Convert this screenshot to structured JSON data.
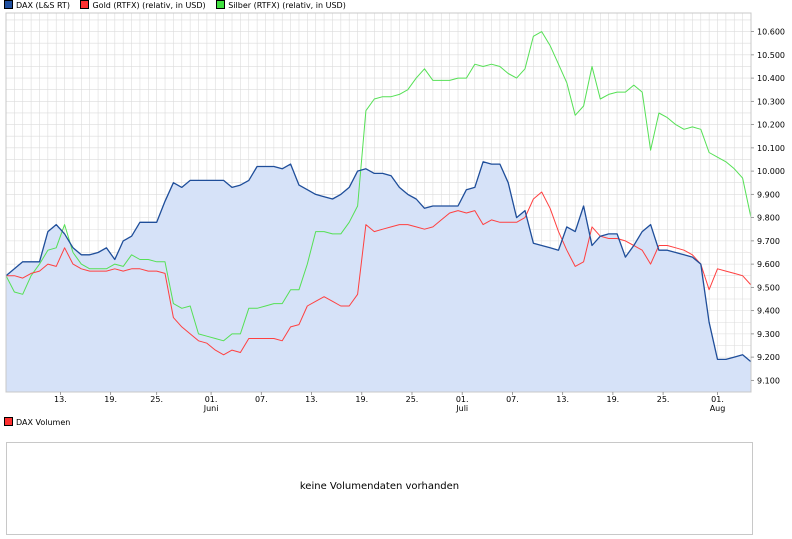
{
  "legend": [
    {
      "label": "DAX (L&S RT)",
      "color": "#2050a0"
    },
    {
      "label": "Gold (RTFX) (relativ, in USD)",
      "color": "#ff3030"
    },
    {
      "label": "Silber (RTFX) (relativ, in USD)",
      "color": "#40e040"
    }
  ],
  "volume": {
    "legend_label": "DAX Volumen",
    "legend_color": "#ff3030",
    "message": "keine Volumendaten vorhanden"
  },
  "colors": {
    "dax_line": "#1f4e9a",
    "dax_fill": "#d6e2f8",
    "gold": "#ff4040",
    "silver": "#55e055",
    "grid": "#dcdcdc",
    "frame": "#c8c8c8"
  },
  "chart_data": {
    "type": "line",
    "y_axis": {
      "position": "right",
      "ylim": [
        9050,
        10680
      ],
      "ticks": [
        9100,
        9200,
        9300,
        9400,
        9500,
        9600,
        9700,
        9800,
        9900,
        10000,
        10100,
        10200,
        10300,
        10400,
        10500,
        10600
      ],
      "tick_labels": [
        "9.100",
        "9.200",
        "9.300",
        "9.400",
        "9.500",
        "9.600",
        "9.700",
        "9.800",
        "9.900",
        "10.000",
        "10.100",
        "10.200",
        "10.300",
        "10.400",
        "10.500",
        "10.600"
      ]
    },
    "x_axis": {
      "xlim": [
        0,
        89
      ],
      "ticks": [
        {
          "x": 6.5,
          "label": "13."
        },
        {
          "x": 12.5,
          "label": "19."
        },
        {
          "x": 18,
          "label": "25."
        },
        {
          "x": 24.5,
          "label": "01.",
          "sub": "Juni"
        },
        {
          "x": 30.5,
          "label": "07."
        },
        {
          "x": 36.5,
          "label": "13."
        },
        {
          "x": 42.5,
          "label": "19."
        },
        {
          "x": 48.5,
          "label": "25."
        },
        {
          "x": 54.5,
          "label": "01.",
          "sub": "Juli"
        },
        {
          "x": 60.5,
          "label": "07."
        },
        {
          "x": 66.5,
          "label": "13."
        },
        {
          "x": 72.5,
          "label": "19."
        },
        {
          "x": 78.5,
          "label": "25."
        },
        {
          "x": 85,
          "label": "01.",
          "sub": "Aug"
        }
      ]
    },
    "grid": true,
    "legend_position": "top-left",
    "series": [
      {
        "name": "DAX (L&S RT)",
        "style": "area",
        "points": [
          [
            0,
            9550
          ],
          [
            1,
            9580
          ],
          [
            2,
            9610
          ],
          [
            3,
            9610
          ],
          [
            4,
            9610
          ],
          [
            5,
            9740
          ],
          [
            6,
            9770
          ],
          [
            7,
            9730
          ],
          [
            8,
            9670
          ],
          [
            9,
            9640
          ],
          [
            10,
            9640
          ],
          [
            11,
            9650
          ],
          [
            12,
            9670
          ],
          [
            13,
            9620
          ],
          [
            14,
            9700
          ],
          [
            15,
            9720
          ],
          [
            16,
            9780
          ],
          [
            17,
            9780
          ],
          [
            18,
            9780
          ],
          [
            19,
            9870
          ],
          [
            20,
            9950
          ],
          [
            21,
            9930
          ],
          [
            22,
            9960
          ],
          [
            23,
            9960
          ],
          [
            24,
            9960
          ],
          [
            25,
            9960
          ],
          [
            26,
            9960
          ],
          [
            27,
            9930
          ],
          [
            28,
            9940
          ],
          [
            29,
            9960
          ],
          [
            30,
            10020
          ],
          [
            31,
            10020
          ],
          [
            32,
            10020
          ],
          [
            33,
            10010
          ],
          [
            34,
            10030
          ],
          [
            35,
            9940
          ],
          [
            36,
            9920
          ],
          [
            37,
            9900
          ],
          [
            38,
            9890
          ],
          [
            39,
            9880
          ],
          [
            40,
            9900
          ],
          [
            41,
            9930
          ],
          [
            42,
            10000
          ],
          [
            43,
            10010
          ],
          [
            44,
            9990
          ],
          [
            45,
            9990
          ],
          [
            46,
            9980
          ],
          [
            47,
            9930
          ],
          [
            48,
            9900
          ],
          [
            49,
            9880
          ],
          [
            50,
            9840
          ],
          [
            51,
            9850
          ],
          [
            52,
            9850
          ],
          [
            53,
            9850
          ],
          [
            54,
            9850
          ],
          [
            55,
            9920
          ],
          [
            56,
            9930
          ],
          [
            57,
            10040
          ],
          [
            58,
            10030
          ],
          [
            59,
            10030
          ],
          [
            60,
            9950
          ],
          [
            61,
            9800
          ],
          [
            62,
            9830
          ],
          [
            63,
            9690
          ],
          [
            64,
            9680
          ],
          [
            65,
            9670
          ],
          [
            66,
            9660
          ],
          [
            67,
            9760
          ],
          [
            68,
            9740
          ],
          [
            69,
            9850
          ],
          [
            70,
            9680
          ],
          [
            71,
            9720
          ],
          [
            72,
            9730
          ],
          [
            73,
            9730
          ],
          [
            74,
            9630
          ],
          [
            75,
            9680
          ],
          [
            76,
            9740
          ],
          [
            77,
            9770
          ],
          [
            78,
            9660
          ],
          [
            79,
            9660
          ],
          [
            80,
            9650
          ],
          [
            81,
            9640
          ],
          [
            82,
            9630
          ],
          [
            83,
            9600
          ],
          [
            84,
            9350
          ],
          [
            85,
            9190
          ],
          [
            86,
            9190
          ],
          [
            87,
            9200
          ],
          [
            88,
            9210
          ],
          [
            89,
            9180
          ]
        ]
      },
      {
        "name": "Gold (RTFX) (relativ, in USD)",
        "style": "line",
        "points": [
          [
            0,
            9550
          ],
          [
            1,
            9550
          ],
          [
            2,
            9540
          ],
          [
            3,
            9560
          ],
          [
            4,
            9570
          ],
          [
            5,
            9600
          ],
          [
            6,
            9590
          ],
          [
            7,
            9670
          ],
          [
            8,
            9600
          ],
          [
            9,
            9580
          ],
          [
            10,
            9570
          ],
          [
            11,
            9570
          ],
          [
            12,
            9570
          ],
          [
            13,
            9580
          ],
          [
            14,
            9570
          ],
          [
            15,
            9580
          ],
          [
            16,
            9580
          ],
          [
            17,
            9570
          ],
          [
            18,
            9570
          ],
          [
            19,
            9560
          ],
          [
            20,
            9370
          ],
          [
            21,
            9330
          ],
          [
            22,
            9300
          ],
          [
            23,
            9270
          ],
          [
            24,
            9260
          ],
          [
            25,
            9230
          ],
          [
            26,
            9210
          ],
          [
            27,
            9230
          ],
          [
            28,
            9220
          ],
          [
            29,
            9280
          ],
          [
            30,
            9280
          ],
          [
            31,
            9280
          ],
          [
            32,
            9280
          ],
          [
            33,
            9270
          ],
          [
            34,
            9330
          ],
          [
            35,
            9340
          ],
          [
            36,
            9420
          ],
          [
            37,
            9440
          ],
          [
            38,
            9460
          ],
          [
            39,
            9440
          ],
          [
            40,
            9420
          ],
          [
            41,
            9420
          ],
          [
            42,
            9470
          ],
          [
            43,
            9770
          ],
          [
            44,
            9740
          ],
          [
            45,
            9750
          ],
          [
            46,
            9760
          ],
          [
            47,
            9770
          ],
          [
            48,
            9770
          ],
          [
            49,
            9760
          ],
          [
            50,
            9750
          ],
          [
            51,
            9760
          ],
          [
            52,
            9790
          ],
          [
            53,
            9820
          ],
          [
            54,
            9830
          ],
          [
            55,
            9820
          ],
          [
            56,
            9830
          ],
          [
            57,
            9770
          ],
          [
            58,
            9790
          ],
          [
            59,
            9780
          ],
          [
            60,
            9780
          ],
          [
            61,
            9780
          ],
          [
            62,
            9800
          ],
          [
            63,
            9880
          ],
          [
            64,
            9910
          ],
          [
            65,
            9840
          ],
          [
            66,
            9740
          ],
          [
            67,
            9660
          ],
          [
            68,
            9590
          ],
          [
            69,
            9610
          ],
          [
            70,
            9760
          ],
          [
            71,
            9720
          ],
          [
            72,
            9710
          ],
          [
            73,
            9710
          ],
          [
            74,
            9700
          ],
          [
            75,
            9680
          ],
          [
            76,
            9660
          ],
          [
            77,
            9600
          ],
          [
            78,
            9680
          ],
          [
            79,
            9680
          ],
          [
            80,
            9670
          ],
          [
            81,
            9660
          ],
          [
            82,
            9640
          ],
          [
            83,
            9600
          ],
          [
            84,
            9490
          ],
          [
            85,
            9580
          ],
          [
            86,
            9570
          ],
          [
            87,
            9560
          ],
          [
            88,
            9550
          ],
          [
            89,
            9510
          ]
        ]
      },
      {
        "name": "Silber (RTFX) (relativ, in USD)",
        "style": "line",
        "points": [
          [
            0,
            9550
          ],
          [
            1,
            9480
          ],
          [
            2,
            9470
          ],
          [
            3,
            9550
          ],
          [
            4,
            9600
          ],
          [
            5,
            9660
          ],
          [
            6,
            9670
          ],
          [
            7,
            9770
          ],
          [
            8,
            9650
          ],
          [
            9,
            9600
          ],
          [
            10,
            9580
          ],
          [
            11,
            9580
          ],
          [
            12,
            9580
          ],
          [
            13,
            9600
          ],
          [
            14,
            9590
          ],
          [
            15,
            9640
          ],
          [
            16,
            9620
          ],
          [
            17,
            9620
          ],
          [
            18,
            9610
          ],
          [
            19,
            9610
          ],
          [
            20,
            9430
          ],
          [
            21,
            9410
          ],
          [
            22,
            9420
          ],
          [
            23,
            9300
          ],
          [
            24,
            9290
          ],
          [
            25,
            9280
          ],
          [
            26,
            9270
          ],
          [
            27,
            9300
          ],
          [
            28,
            9300
          ],
          [
            29,
            9410
          ],
          [
            30,
            9410
          ],
          [
            31,
            9420
          ],
          [
            32,
            9430
          ],
          [
            33,
            9430
          ],
          [
            34,
            9490
          ],
          [
            35,
            9490
          ],
          [
            36,
            9600
          ],
          [
            37,
            9740
          ],
          [
            38,
            9740
          ],
          [
            39,
            9730
          ],
          [
            40,
            9730
          ],
          [
            41,
            9780
          ],
          [
            42,
            9850
          ],
          [
            43,
            10260
          ],
          [
            44,
            10310
          ],
          [
            45,
            10320
          ],
          [
            46,
            10320
          ],
          [
            47,
            10330
          ],
          [
            48,
            10350
          ],
          [
            49,
            10400
          ],
          [
            50,
            10440
          ],
          [
            51,
            10390
          ],
          [
            52,
            10390
          ],
          [
            53,
            10390
          ],
          [
            54,
            10400
          ],
          [
            55,
            10400
          ],
          [
            56,
            10460
          ],
          [
            57,
            10450
          ],
          [
            58,
            10460
          ],
          [
            59,
            10450
          ],
          [
            60,
            10420
          ],
          [
            61,
            10400
          ],
          [
            62,
            10440
          ],
          [
            63,
            10580
          ],
          [
            64,
            10600
          ],
          [
            65,
            10540
          ],
          [
            66,
            10460
          ],
          [
            67,
            10380
          ],
          [
            68,
            10240
          ],
          [
            69,
            10280
          ],
          [
            70,
            10450
          ],
          [
            71,
            10310
          ],
          [
            72,
            10330
          ],
          [
            73,
            10340
          ],
          [
            74,
            10340
          ],
          [
            75,
            10370
          ],
          [
            76,
            10340
          ],
          [
            77,
            10090
          ],
          [
            78,
            10250
          ],
          [
            79,
            10230
          ],
          [
            80,
            10200
          ],
          [
            81,
            10180
          ],
          [
            82,
            10190
          ],
          [
            83,
            10180
          ],
          [
            84,
            10080
          ],
          [
            85,
            10060
          ],
          [
            86,
            10040
          ],
          [
            87,
            10010
          ],
          [
            88,
            9970
          ],
          [
            89,
            9800
          ]
        ]
      }
    ]
  }
}
